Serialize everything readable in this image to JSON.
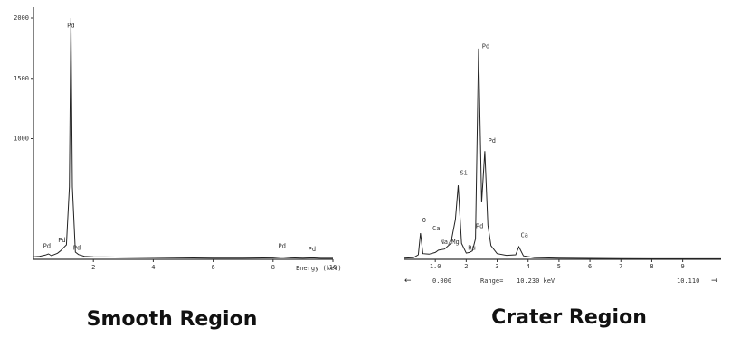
{
  "chart_data": [
    {
      "type": "line",
      "title": "Smooth Region",
      "xlabel": "Energy (keV)",
      "ylabel": "",
      "xlim": [
        0,
        10
      ],
      "ylim": [
        0,
        2000
      ],
      "y_ticks": [
        "2000",
        "1500",
        "1000"
      ],
      "x_ticks": [
        "2",
        "4",
        "6",
        "8",
        "10"
      ],
      "peak_labels": [
        {
          "label": "Pd",
          "x": 1.25,
          "y": 1900
        },
        {
          "label": "Pd",
          "x": 0.45,
          "y": 70
        },
        {
          "label": "Pd",
          "x": 0.95,
          "y": 120
        },
        {
          "label": "Pd",
          "x": 1.45,
          "y": 55
        },
        {
          "label": "Pd",
          "x": 8.3,
          "y": 70
        },
        {
          "label": "Pd",
          "x": 9.3,
          "y": 45
        }
      ],
      "series": [
        {
          "x": [
            0,
            0.2,
            0.4,
            0.5,
            0.6,
            0.8,
            0.9,
            1.0,
            1.1,
            1.2,
            1.25,
            1.3,
            1.4,
            1.5,
            1.7,
            2.0,
            3.0,
            4.0,
            5.0,
            6.0,
            7.0,
            8.0,
            8.3,
            8.6,
            9.0,
            9.3,
            9.6,
            10.0
          ],
          "y": [
            20,
            25,
            35,
            45,
            30,
            50,
            70,
            95,
            120,
            600,
            2000,
            600,
            60,
            40,
            25,
            20,
            18,
            15,
            12,
            10,
            10,
            12,
            18,
            12,
            10,
            12,
            8,
            8
          ]
        }
      ]
    },
    {
      "type": "line",
      "title": "Crater Region",
      "xlabel": "keV",
      "ylabel": "",
      "xlim": [
        0,
        10.24
      ],
      "ylim": [
        0,
        2000
      ],
      "x_ticks": [
        "1.0",
        "2",
        "3",
        "4",
        "5",
        "6",
        "7",
        "8",
        "9"
      ],
      "range_readout": {
        "start": "0.000",
        "range": "Range=",
        "end": "10.230 keV",
        "cursor": "10.110"
      },
      "peak_labels": [
        {
          "label": "O",
          "x": 0.52,
          "y": 300
        },
        {
          "label": "Ca",
          "x": 0.85,
          "y": 230
        },
        {
          "label": "Na/Mg",
          "x": 1.1,
          "y": 110
        },
        {
          "label": "Si",
          "x": 1.74,
          "y": 720
        },
        {
          "label": "Pd",
          "x": 2.45,
          "y": 1830
        },
        {
          "label": "Pd",
          "x": 2.25,
          "y": 250
        },
        {
          "label": "Ru",
          "x": 2.0,
          "y": 60
        },
        {
          "label": "Pd",
          "x": 2.65,
          "y": 1000
        },
        {
          "label": "Ca",
          "x": 3.7,
          "y": 170
        }
      ],
      "series": [
        {
          "x": [
            0,
            0.3,
            0.45,
            0.52,
            0.6,
            0.8,
            1.0,
            1.1,
            1.3,
            1.5,
            1.65,
            1.74,
            1.85,
            2.0,
            2.1,
            2.2,
            2.3,
            2.4,
            2.5,
            2.6,
            2.7,
            2.8,
            3.0,
            3.3,
            3.6,
            3.7,
            3.85,
            4.2,
            5.0,
            6.0,
            7.0,
            8.0,
            9.0,
            10.24
          ],
          "y": [
            10,
            15,
            40,
            230,
            50,
            45,
            60,
            80,
            90,
            140,
            350,
            650,
            140,
            55,
            60,
            75,
            180,
            1850,
            500,
            950,
            300,
            120,
            50,
            35,
            40,
            110,
            30,
            15,
            10,
            8,
            6,
            5,
            5,
            5
          ]
        }
      ]
    }
  ]
}
